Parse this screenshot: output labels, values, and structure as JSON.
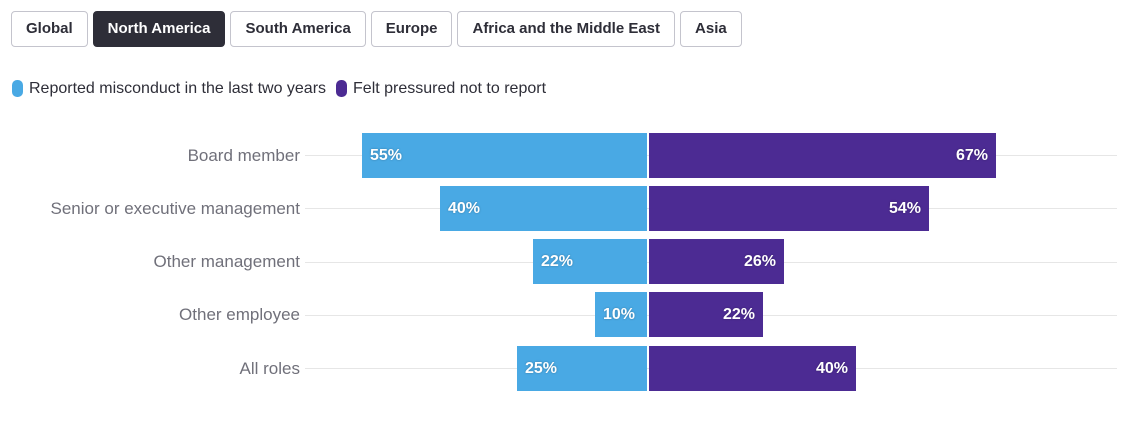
{
  "tabs": [
    {
      "label": "Global",
      "active": false
    },
    {
      "label": "North America",
      "active": true
    },
    {
      "label": "South America",
      "active": false
    },
    {
      "label": "Europe",
      "active": false
    },
    {
      "label": "Africa and the Middle East",
      "active": false
    },
    {
      "label": "Asia",
      "active": false
    }
  ],
  "legend": [
    {
      "label": "Reported misconduct in the last two years",
      "color": "#49a9e4"
    },
    {
      "label": "Felt pressured not to report",
      "color": "#4c2b93"
    }
  ],
  "chart_data": {
    "type": "bar",
    "orientation": "horizontal-diverging",
    "categories": [
      "Board member",
      "Senior or executive management",
      "Other management",
      "Other employee",
      "All roles"
    ],
    "series": [
      {
        "name": "Reported misconduct in the last two years",
        "color": "#49a9e4",
        "direction": "left",
        "values": [
          55,
          40,
          22,
          10,
          25
        ]
      },
      {
        "name": "Felt pressured not to report",
        "color": "#4c2b93",
        "direction": "right",
        "values": [
          67,
          54,
          26,
          22,
          40
        ]
      }
    ],
    "value_suffix": "%",
    "value_label_position": "far-end-inside-bar",
    "grid": "one light horizontal line per category row",
    "xlim_each_side": [
      0,
      90
    ],
    "legend_position": "top-left",
    "title": "",
    "xlabel": "",
    "ylabel": ""
  },
  "colors": {
    "accent_blue": "#49a9e4",
    "accent_purple": "#4c2b93",
    "tab_active_bg": "#2e2e38",
    "tab_border": "#c4c4cd",
    "tab_text": "#2e2e38",
    "category_label_text": "#70707a",
    "legend_text": "#2e2e38",
    "gridline": "#e6e6e6",
    "background": "#ffffff"
  }
}
